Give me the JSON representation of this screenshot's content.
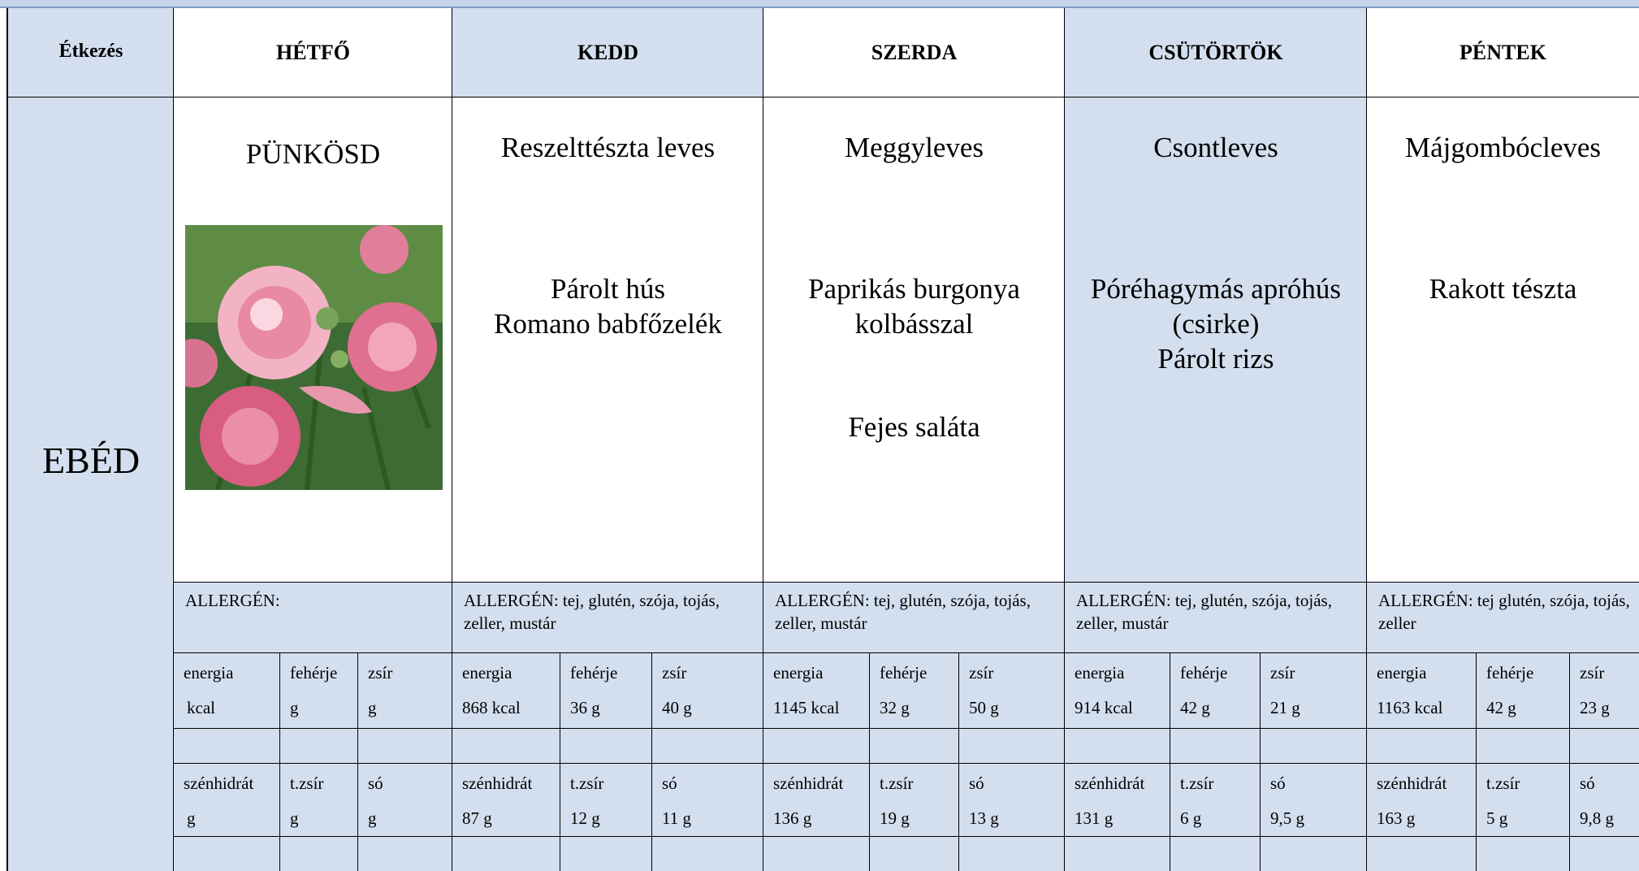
{
  "header": {
    "meal_label": "Étkezés",
    "days": [
      "HÉTFŐ",
      "KEDD",
      "SZERDA",
      "CSÜTÖRTÖK",
      "PÉNTEK"
    ]
  },
  "meal": "EBÉD",
  "days": [
    {
      "soup": "PÜNKÖSD",
      "main": [],
      "side": null,
      "allergen": "ALLERGÉN:",
      "labels1": [
        "energia",
        "fehérje",
        "zsír"
      ],
      "values1": [
        "kcal",
        "g",
        "g"
      ],
      "labels2": [
        "szénhidrát",
        "t.zsír",
        "só"
      ],
      "values2": [
        "g",
        "g",
        "g"
      ]
    },
    {
      "soup": "Reszelttészta leves",
      "main": [
        "Párolt hús",
        "Romano babfőzelék"
      ],
      "side": null,
      "allergen": "ALLERGÉN: tej, glutén, szója, tojás, zeller, mustár",
      "labels1": [
        "energia",
        "fehérje",
        "zsír"
      ],
      "values1": [
        "868 kcal",
        "36 g",
        "40 g"
      ],
      "labels2": [
        "szénhidrát",
        "t.zsír",
        "só"
      ],
      "values2": [
        "87 g",
        "12 g",
        "11 g"
      ]
    },
    {
      "soup": "Meggyleves",
      "main": [
        "Paprikás burgonya",
        "kolbásszal"
      ],
      "side": "Fejes saláta",
      "allergen": "ALLERGÉN: tej, glutén, szója, tojás, zeller, mustár",
      "labels1": [
        "energia",
        "fehérje",
        "zsír"
      ],
      "values1": [
        "1145 kcal",
        "32 g",
        "50 g"
      ],
      "labels2": [
        "szénhidrát",
        "t.zsír",
        "só"
      ],
      "values2": [
        "136 g",
        "19 g",
        "13 g"
      ]
    },
    {
      "soup": "Csontleves",
      "main": [
        "Póréhagymás apróhús",
        "(csirke)",
        "Párolt rizs"
      ],
      "side": null,
      "allergen": "ALLERGÉN: tej, glutén, szója, tojás, zeller, mustár",
      "labels1": [
        "energia",
        "fehérje",
        "zsír"
      ],
      "values1": [
        "914 kcal",
        "42 g",
        "21 g"
      ],
      "labels2": [
        "szénhidrát",
        "t.zsír",
        "só"
      ],
      "values2": [
        "131 g",
        "6 g",
        "9,5 g"
      ]
    },
    {
      "soup": "Májgombócleves",
      "main": [
        "Rakott tészta"
      ],
      "side": null,
      "allergen": "ALLERGÉN: tej glutén, szója, tojás, zeller",
      "labels1": [
        "energia",
        "fehérje",
        "zsír"
      ],
      "values1": [
        "1163 kcal",
        "42 g",
        "23 g"
      ],
      "labels2": [
        "szénhidrát",
        "t.zsír",
        "só"
      ],
      "values2": [
        "163 g",
        "5 g",
        "9,8 g"
      ]
    }
  ]
}
